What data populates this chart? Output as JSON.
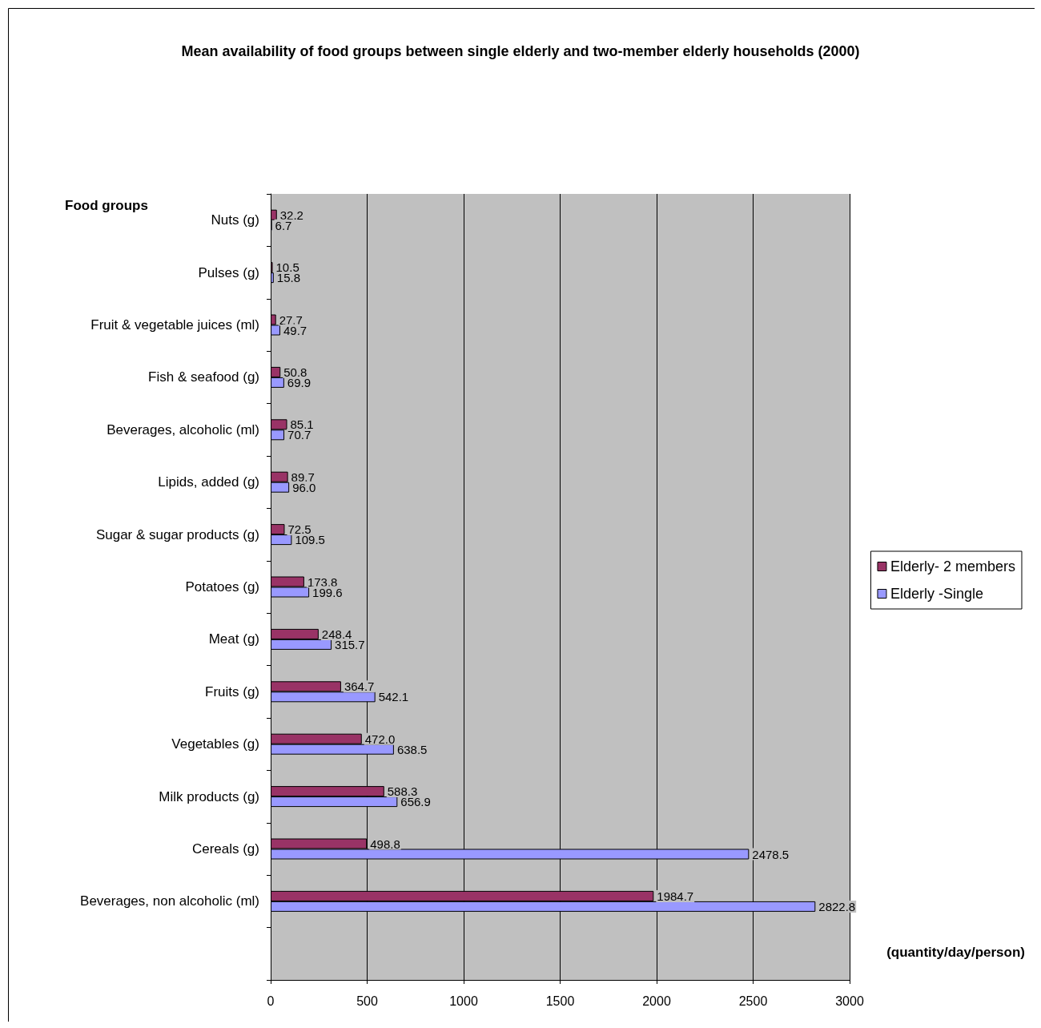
{
  "chart_data": {
    "type": "bar",
    "orientation": "horizontal",
    "title": "Mean availability of food groups between single elderly and two-member elderly households (2000)",
    "ylabel": "Food groups",
    "xlabel": "(quantity/day/person)",
    "categories": [
      "Nuts (g)",
      "Pulses (g)",
      "Fruit & vegetable juices (ml)",
      "Fish & seafood (g)",
      "Beverages, alcoholic (ml)",
      "Lipids, added (g)",
      "Sugar & sugar products (g)",
      "Potatoes (g)",
      "Meat (g)",
      "Fruits (g)",
      "Vegetables (g)",
      "Milk products (g)",
      "Cereals (g)",
      "Beverages, non alcoholic (ml)",
      null
    ],
    "series": [
      {
        "name": "Elderly- 2 members",
        "color": "#993366",
        "values": [
          32.2,
          10.5,
          27.7,
          50.8,
          85.1,
          89.7,
          72.5,
          173.8,
          248.4,
          364.7,
          472.0,
          588.3,
          498.8,
          1984.7,
          null
        ],
        "value_labels": [
          "32.2",
          "10.5",
          "27.7",
          "50.8",
          "85.1",
          "89.7",
          "72.5",
          "173.8",
          "248.4",
          "364.7",
          "472.0",
          "588.3",
          "498.8",
          "1984.7",
          null
        ]
      },
      {
        "name": "Elderly -Single",
        "color": "#9999ff",
        "values": [
          6.7,
          15.8,
          49.7,
          69.9,
          70.7,
          96.0,
          109.5,
          199.6,
          315.7,
          542.1,
          638.5,
          656.9,
          2478.5,
          2822.8,
          null
        ],
        "value_labels": [
          "6.7",
          "15.8",
          "49.7",
          "69.9",
          "70.7",
          "96.0",
          "109.5",
          "199.6",
          "315.7",
          "542.1",
          "638.5",
          "656.9",
          "2478.5",
          "2822.8",
          null
        ]
      }
    ],
    "xlim": [
      0,
      3000
    ],
    "xticks": [
      0,
      500,
      1000,
      1500,
      2000,
      2500,
      3000
    ],
    "grid": "x",
    "legend": "right"
  }
}
